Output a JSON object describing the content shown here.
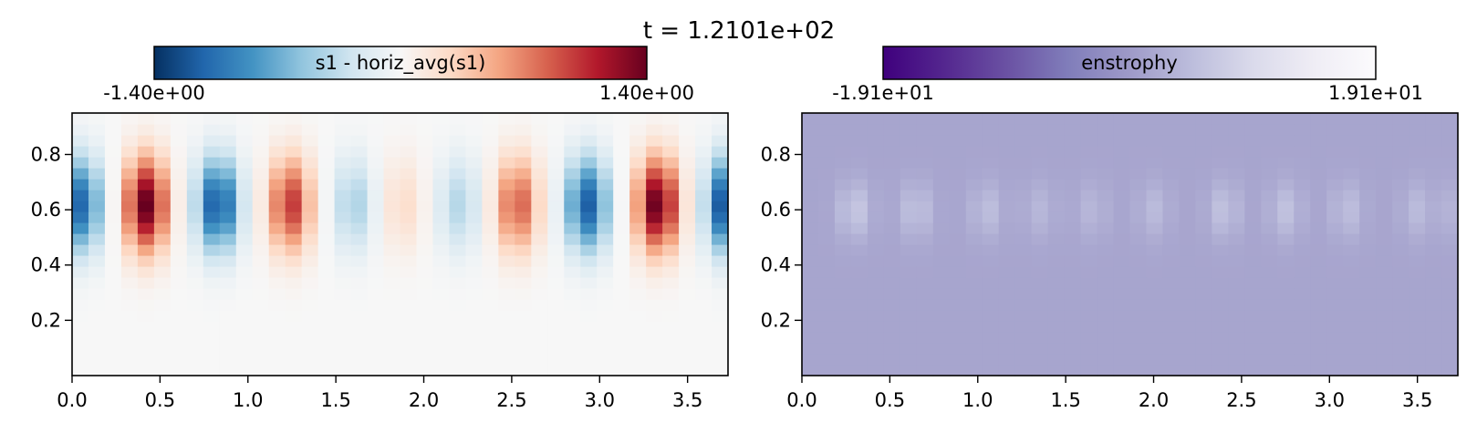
{
  "figure": {
    "suptitle": "t = 1.2101e+02"
  },
  "chart_data": [
    {
      "type": "heatmap",
      "title": "",
      "colorbar": {
        "label": "s1 - horiz_avg(s1)",
        "min_label": "-1.40e+00",
        "max_label": "1.40e+00",
        "vmin": -1.4,
        "vmax": 1.4,
        "colormap": "RdBu_r",
        "stops": [
          "#053061",
          "#2166ac",
          "#4393c3",
          "#92c5de",
          "#d1e5f0",
          "#f7f7f7",
          "#fddbc7",
          "#f4a582",
          "#d6604d",
          "#b2182b",
          "#67001f"
        ]
      },
      "xlim": [
        0,
        3.73
      ],
      "ylim": [
        0,
        0.95
      ],
      "x_ticks": [
        0,
        0.5,
        1,
        1.5,
        2,
        2.5,
        3,
        3.5
      ],
      "x_tick_labels": [
        "0.0",
        "0.5",
        "1.0",
        "1.5",
        "2.0",
        "2.5",
        "3.0",
        "3.5"
      ],
      "y_ticks": [
        0.2,
        0.4,
        0.6,
        0.8
      ],
      "y_tick_labels": [
        "0.2",
        "0.4",
        "0.6",
        "0.8"
      ],
      "grid": false,
      "field": {
        "description_of_pattern": "vertical cells centered near y=0.62",
        "cell_centers_x": [
          0.05,
          0.42,
          0.83,
          1.24,
          1.6,
          1.88,
          2.2,
          2.53,
          2.93,
          3.33,
          3.73
        ],
        "cell_amplitudes": [
          -1.1,
          1.4,
          -1.2,
          1.0,
          -0.45,
          0.25,
          -0.4,
          0.85,
          -1.15,
          1.4,
          -1.35
        ],
        "cell_center_y": 0.62,
        "grid_nx": 40,
        "grid_ny": 24
      }
    },
    {
      "type": "heatmap",
      "title": "",
      "colorbar": {
        "label": "enstrophy",
        "min_label": "-1.91e+01",
        "max_label": "1.91e+01",
        "vmin": -19.1,
        "vmax": 19.1,
        "colormap": "Purples_r",
        "stops": [
          "#3f007d",
          "#54278f",
          "#6a51a3",
          "#807dba",
          "#9e9ac8",
          "#bcbddc",
          "#dadaeb",
          "#efedf5",
          "#fcfbfd"
        ]
      },
      "xlim": [
        0,
        3.73
      ],
      "ylim": [
        0,
        0.95
      ],
      "x_ticks": [
        0,
        0.5,
        1,
        1.5,
        2,
        2.5,
        3,
        3.5
      ],
      "x_tick_labels": [
        "0.0",
        "0.5",
        "1.0",
        "1.5",
        "2.0",
        "2.5",
        "3.0",
        "3.5"
      ],
      "y_ticks": [
        0.2,
        0.4,
        0.6,
        0.8
      ],
      "y_tick_labels": [
        "0.2",
        "0.4",
        "0.6",
        "0.8"
      ],
      "grid": false,
      "field": {
        "base_value": 1.5,
        "cell_centers_x": [
          0.3,
          0.65,
          1.05,
          1.35,
          1.65,
          2.0,
          2.4,
          2.75,
          3.1,
          3.5,
          3.73
        ],
        "cell_amplitudes": [
          5.0,
          4.0,
          3.5,
          2.5,
          2.5,
          3.0,
          4.0,
          4.0,
          3.5,
          3.0,
          2.5
        ],
        "cell_center_y": 0.6,
        "grid_nx": 40,
        "grid_ny": 24
      }
    }
  ]
}
